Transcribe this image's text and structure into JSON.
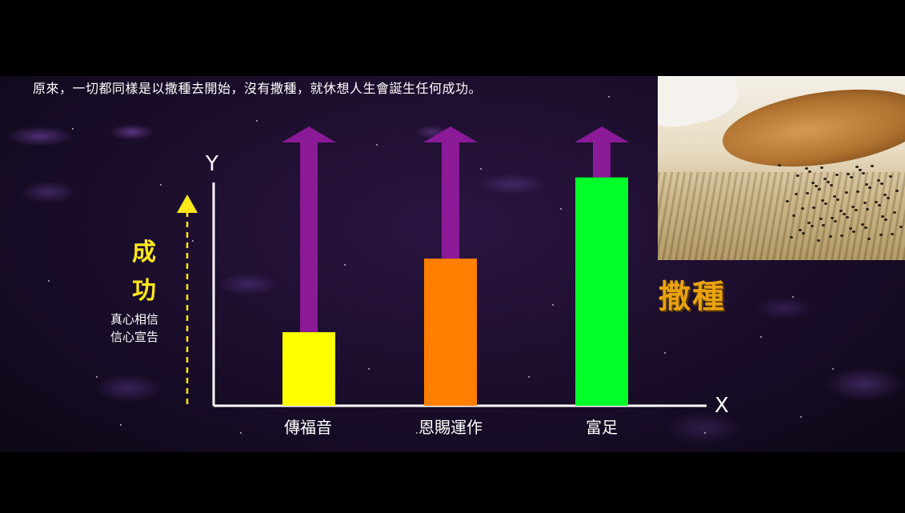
{
  "caption": "原來，一切都同樣是以撒種去開始，沒有撒種，就休想人生會誕生任何成功。",
  "photo_label": "撒種",
  "y_axis": {
    "letter": "Y",
    "label_1": "成",
    "label_2": "功",
    "note_1": "真心相信",
    "note_2": "信心宣告"
  },
  "x_axis": {
    "letter": "X"
  },
  "colors": {
    "bar_1": "#ffff00",
    "bar_2": "#ff7f00",
    "bar_3": "#00ff2a",
    "arrow": "#8a1a96",
    "dashed_arrow": "#ffe81a",
    "label": "#e8a20f"
  },
  "chart_data": {
    "type": "bar",
    "categories": [
      "傳福音",
      "恩賜運作",
      "富足"
    ],
    "values": [
      0.29,
      0.58,
      0.9
    ],
    "arrow_tops": [
      1.0,
      1.0,
      1.0
    ],
    "ylim": [
      0,
      1
    ],
    "xlabel": "X",
    "ylabel": "Y"
  }
}
